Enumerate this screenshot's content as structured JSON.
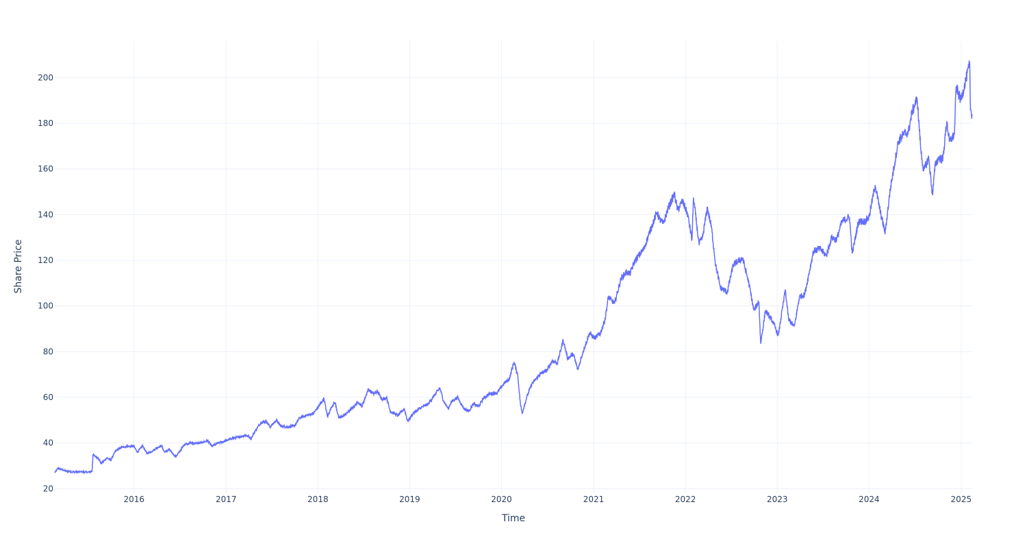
{
  "chart_data": {
    "type": "line",
    "title": "",
    "xlabel": "Time",
    "ylabel": "Share Price",
    "xlim": [
      "2015-02-20",
      "2025-02-14"
    ],
    "ylim": [
      18,
      216
    ],
    "grid": true,
    "legend": "none",
    "x_ticks": [
      "2016",
      "2017",
      "2018",
      "2019",
      "2020",
      "2021",
      "2022",
      "2023",
      "2024",
      "2025"
    ],
    "y_ticks": [
      20,
      40,
      60,
      80,
      100,
      120,
      140,
      160,
      180,
      200
    ],
    "colors": {
      "line": "#636efa",
      "grid": "#ebf0f8",
      "text": "#2a3f5f"
    },
    "series": [
      {
        "points": [
          [
            "2015-02-20",
            27.0
          ],
          [
            "2015-03-05",
            29.0
          ],
          [
            "2015-04-01",
            27.8
          ],
          [
            "2015-05-01",
            27.3
          ],
          [
            "2015-06-01",
            27.4
          ],
          [
            "2015-07-01",
            27.2
          ],
          [
            "2015-07-18",
            27.5
          ],
          [
            "2015-07-22",
            34.8
          ],
          [
            "2015-08-10",
            33.5
          ],
          [
            "2015-08-25",
            31.0
          ],
          [
            "2015-09-15",
            33.5
          ],
          [
            "2015-10-01",
            32.5
          ],
          [
            "2015-10-20",
            36.5
          ],
          [
            "2015-11-10",
            38.0
          ],
          [
            "2015-12-01",
            38.5
          ],
          [
            "2015-12-31",
            38.5
          ],
          [
            "2016-01-15",
            36.0
          ],
          [
            "2016-02-05",
            38.8
          ],
          [
            "2016-02-20",
            35.5
          ],
          [
            "2016-03-15",
            36.5
          ],
          [
            "2016-04-01",
            38.0
          ],
          [
            "2016-04-20",
            38.8
          ],
          [
            "2016-05-01",
            36.0
          ],
          [
            "2016-05-20",
            37.0
          ],
          [
            "2016-06-15",
            34.0
          ],
          [
            "2016-07-05",
            37.0
          ],
          [
            "2016-07-20",
            39.5
          ],
          [
            "2016-08-15",
            40.0
          ],
          [
            "2016-09-15",
            39.8
          ],
          [
            "2016-10-20",
            41.0
          ],
          [
            "2016-11-05",
            38.5
          ],
          [
            "2016-12-01",
            40.0
          ],
          [
            "2017-01-01",
            41.0
          ],
          [
            "2017-01-25",
            42.0
          ],
          [
            "2017-02-20",
            42.5
          ],
          [
            "2017-03-20",
            43.5
          ],
          [
            "2017-04-10",
            42.0
          ],
          [
            "2017-05-01",
            46.0
          ],
          [
            "2017-05-20",
            49.0
          ],
          [
            "2017-06-10",
            49.5
          ],
          [
            "2017-06-25",
            47.0
          ],
          [
            "2017-07-20",
            50.0
          ],
          [
            "2017-08-05",
            47.5
          ],
          [
            "2017-09-01",
            47.0
          ],
          [
            "2017-10-01",
            47.5
          ],
          [
            "2017-10-20",
            51.0
          ],
          [
            "2017-11-15",
            52.0
          ],
          [
            "2017-12-15",
            53.0
          ],
          [
            "2018-01-10",
            57.0
          ],
          [
            "2018-01-25",
            59.5
          ],
          [
            "2018-02-08",
            51.5
          ],
          [
            "2018-02-25",
            56.0
          ],
          [
            "2018-03-10",
            57.8
          ],
          [
            "2018-03-25",
            51.0
          ],
          [
            "2018-04-15",
            52.0
          ],
          [
            "2018-05-15",
            55.0
          ],
          [
            "2018-06-10",
            58.0
          ],
          [
            "2018-06-25",
            56.0
          ],
          [
            "2018-07-20",
            63.5
          ],
          [
            "2018-08-10",
            61.5
          ],
          [
            "2018-08-25",
            62.5
          ],
          [
            "2018-09-15",
            59.0
          ],
          [
            "2018-10-01",
            60.0
          ],
          [
            "2018-10-15",
            54.0
          ],
          [
            "2018-11-15",
            52.0
          ],
          [
            "2018-12-10",
            55.0
          ],
          [
            "2018-12-24",
            49.5
          ],
          [
            "2019-01-15",
            53.0
          ],
          [
            "2019-02-15",
            55.5
          ],
          [
            "2019-03-15",
            57.0
          ],
          [
            "2019-04-10",
            61.0
          ],
          [
            "2019-05-01",
            64.0
          ],
          [
            "2019-05-15",
            58.5
          ],
          [
            "2019-06-03",
            55.0
          ],
          [
            "2019-06-15",
            58.0
          ],
          [
            "2019-07-10",
            60.0
          ],
          [
            "2019-08-05",
            55.0
          ],
          [
            "2019-08-25",
            54.0
          ],
          [
            "2019-09-10",
            57.0
          ],
          [
            "2019-10-03",
            56.0
          ],
          [
            "2019-10-20",
            59.5
          ],
          [
            "2019-11-15",
            61.5
          ],
          [
            "2019-12-15",
            62.0
          ],
          [
            "2020-01-10",
            66.0
          ],
          [
            "2020-02-01",
            68.0
          ],
          [
            "2020-02-19",
            75.5
          ],
          [
            "2020-03-05",
            70.0
          ],
          [
            "2020-03-16",
            57.0
          ],
          [
            "2020-03-23",
            53.0
          ],
          [
            "2020-04-10",
            60.0
          ],
          [
            "2020-05-01",
            66.0
          ],
          [
            "2020-06-01",
            70.0
          ],
          [
            "2020-07-01",
            72.0
          ],
          [
            "2020-07-20",
            76.0
          ],
          [
            "2020-08-10",
            75.0
          ],
          [
            "2020-09-02",
            85.0
          ],
          [
            "2020-09-20",
            77.0
          ],
          [
            "2020-10-12",
            79.0
          ],
          [
            "2020-10-30",
            72.0
          ],
          [
            "2020-11-20",
            80.0
          ],
          [
            "2020-12-15",
            88.0
          ],
          [
            "2021-01-05",
            86.0
          ],
          [
            "2021-01-28",
            88.0
          ],
          [
            "2021-02-15",
            94.0
          ],
          [
            "2021-03-01",
            104.0
          ],
          [
            "2021-03-25",
            101.0
          ],
          [
            "2021-04-20",
            112.0
          ],
          [
            "2021-05-12",
            115.0
          ],
          [
            "2021-05-25",
            114.0
          ],
          [
            "2021-06-15",
            120.0
          ],
          [
            "2021-07-20",
            125.0
          ],
          [
            "2021-08-20",
            135.0
          ],
          [
            "2021-09-10",
            141.0
          ],
          [
            "2021-09-20",
            138.0
          ],
          [
            "2021-10-05",
            136.0
          ],
          [
            "2021-10-25",
            143.0
          ],
          [
            "2021-11-18",
            149.0
          ],
          [
            "2021-12-01",
            142.0
          ],
          [
            "2021-12-20",
            146.0
          ],
          [
            "2022-01-10",
            140.0
          ],
          [
            "2022-01-27",
            129.0
          ],
          [
            "2022-02-02",
            147.5
          ],
          [
            "2022-02-24",
            127.0
          ],
          [
            "2022-03-10",
            130.0
          ],
          [
            "2022-03-29",
            143.0
          ],
          [
            "2022-04-15",
            134.0
          ],
          [
            "2022-05-01",
            118.0
          ],
          [
            "2022-05-20",
            108.0
          ],
          [
            "2022-06-16",
            106.0
          ],
          [
            "2022-07-10",
            118.0
          ],
          [
            "2022-08-16",
            121.0
          ],
          [
            "2022-09-10",
            110.0
          ],
          [
            "2022-09-30",
            98.0
          ],
          [
            "2022-10-20",
            102.0
          ],
          [
            "2022-10-27",
            83.5
          ],
          [
            "2022-11-15",
            98.0
          ],
          [
            "2022-12-15",
            93.0
          ],
          [
            "2023-01-05",
            87.0
          ],
          [
            "2023-02-02",
            107.0
          ],
          [
            "2023-02-15",
            94.0
          ],
          [
            "2023-03-10",
            91.0
          ],
          [
            "2023-03-30",
            104.0
          ],
          [
            "2023-04-20",
            105.0
          ],
          [
            "2023-05-25",
            124.0
          ],
          [
            "2023-06-20",
            125.0
          ],
          [
            "2023-07-15",
            122.0
          ],
          [
            "2023-08-05",
            130.0
          ],
          [
            "2023-08-25",
            129.0
          ],
          [
            "2023-09-15",
            137.0
          ],
          [
            "2023-10-15",
            139.0
          ],
          [
            "2023-10-26",
            123.0
          ],
          [
            "2023-11-20",
            137.0
          ],
          [
            "2023-12-15",
            137.0
          ],
          [
            "2024-01-01",
            139.0
          ],
          [
            "2024-01-25",
            153.0
          ],
          [
            "2024-02-15",
            141.0
          ],
          [
            "2024-03-05",
            132.0
          ],
          [
            "2024-03-25",
            151.0
          ],
          [
            "2024-04-26",
            172.0
          ],
          [
            "2024-05-15",
            175.0
          ],
          [
            "2024-06-05",
            176.0
          ],
          [
            "2024-06-20",
            185.0
          ],
          [
            "2024-07-10",
            191.0
          ],
          [
            "2024-07-25",
            168.0
          ],
          [
            "2024-08-05",
            159.0
          ],
          [
            "2024-08-25",
            165.0
          ],
          [
            "2024-09-09",
            148.5
          ],
          [
            "2024-09-20",
            162.0
          ],
          [
            "2024-10-05",
            165.0
          ],
          [
            "2024-10-20",
            164.0
          ],
          [
            "2024-11-05",
            181.0
          ],
          [
            "2024-11-15",
            172.0
          ],
          [
            "2024-12-05",
            175.0
          ],
          [
            "2024-12-12",
            196.0
          ],
          [
            "2024-12-31",
            190.0
          ],
          [
            "2025-01-15",
            197.0
          ],
          [
            "2025-02-04",
            206.0
          ],
          [
            "2025-02-07",
            186.0
          ],
          [
            "2025-02-14",
            183.5
          ]
        ]
      }
    ]
  }
}
